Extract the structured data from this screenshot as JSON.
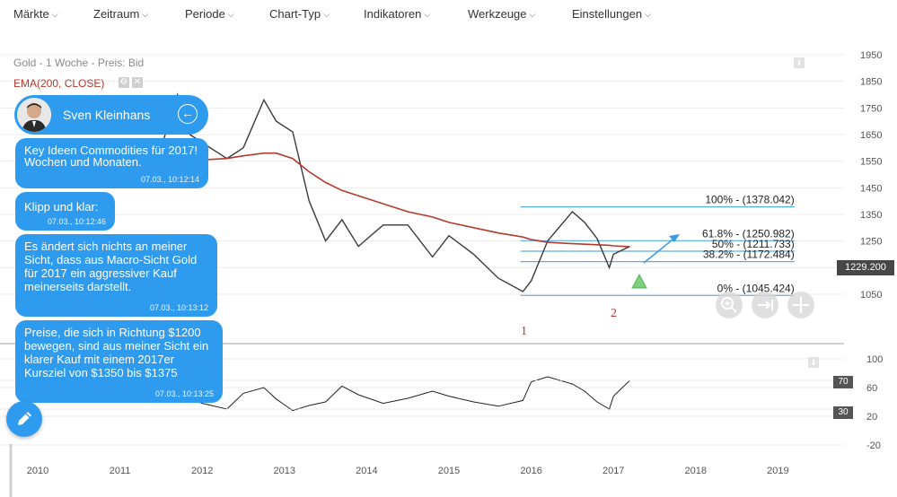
{
  "menu": [
    "Märkte",
    "Zeitraum",
    "Periode",
    "Chart-Typ",
    "Indikatoren",
    "Werkzeuge",
    "Einstellungen"
  ],
  "chart": {
    "series_label": "Gold - 1 Woche - Preis: Bid",
    "ema_label": "EMA(200, CLOSE)",
    "current_price": "1229.200",
    "y_ticks": [
      "1950",
      "1850",
      "1750",
      "1650",
      "1550",
      "1450",
      "1350",
      "1250",
      "1150",
      "1050"
    ],
    "x_ticks": [
      "2010",
      "2011",
      "2012",
      "2013",
      "2014",
      "2015",
      "2016",
      "2017",
      "2018",
      "2019"
    ],
    "fib_labels": [
      "100% - (1378.042)",
      "61.8% - (1250.982)",
      "50% - (1211.733)",
      "38.2% - (1172.484)",
      "0% - (1045.424)"
    ],
    "annotations": [
      "1",
      "2"
    ],
    "rsi_ticks": [
      "100",
      "60",
      "20",
      "-20"
    ],
    "rsi_levels": [
      "70",
      "30"
    ],
    "colors": {
      "price": "#333333",
      "ema": "#b23a2e",
      "fib": "#5aaee6",
      "rsi_over": "#53c8f0",
      "rsi_under": "#f0509c",
      "bubble": "#2f9bef"
    }
  },
  "chat": {
    "name": "Sven Kleinhans",
    "messages": [
      {
        "text": "Key Ideen Commodities für 2017!",
        "hidden_text": "Wochen und Monaten.",
        "time": "07.03., 10:12:14"
      },
      {
        "text": "Klipp und klar:",
        "time": "07.03., 10:12:46"
      },
      {
        "text": "Es ändert sich nichts an meiner Sicht, dass aus Macro-Sicht Gold für 2017 ein aggressiver Kauf meinerseits darstellt.",
        "time": "07.03., 10:13:12"
      },
      {
        "text": "Preise, die sich in Richtung $1200 bewegen, sind aus meiner Sicht ein klarer Kauf mit einem 2017er Kursziel von $1350 bis $1375",
        "time": "07.03., 10:13:25"
      }
    ]
  },
  "chart_data": {
    "type": "line",
    "title": "Gold - 1 Woche - Preis: Bid",
    "x": [
      2011.5,
      2011.7,
      2011.85,
      2012.0,
      2012.3,
      2012.5,
      2012.75,
      2012.9,
      2013.1,
      2013.3,
      2013.5,
      2013.7,
      2013.9,
      2014.2,
      2014.5,
      2014.8,
      2015.0,
      2015.3,
      2015.6,
      2015.9,
      2016.0,
      2016.2,
      2016.5,
      2016.65,
      2016.8,
      2016.95,
      2017.0,
      2017.2
    ],
    "series": [
      {
        "name": "Gold",
        "values": [
          1600,
          1800,
          1650,
          1620,
          1560,
          1600,
          1780,
          1700,
          1660,
          1400,
          1250,
          1330,
          1230,
          1310,
          1310,
          1190,
          1270,
          1200,
          1110,
          1060,
          1100,
          1250,
          1360,
          1320,
          1260,
          1150,
          1200,
          1229
        ]
      },
      {
        "name": "EMA(200, CLOSE)",
        "values": [
          1530,
          1545,
          1550,
          1555,
          1560,
          1570,
          1580,
          1580,
          1560,
          1510,
          1470,
          1440,
          1420,
          1390,
          1360,
          1340,
          1320,
          1300,
          1280,
          1265,
          1255,
          1245,
          1240,
          1238,
          1236,
          1234,
          1232,
          1228
        ]
      }
    ],
    "ylim": [
      1000,
      1950
    ],
    "xlim": [
      2009.8,
      2019.4
    ],
    "ylabel": "",
    "xlabel": ""
  }
}
